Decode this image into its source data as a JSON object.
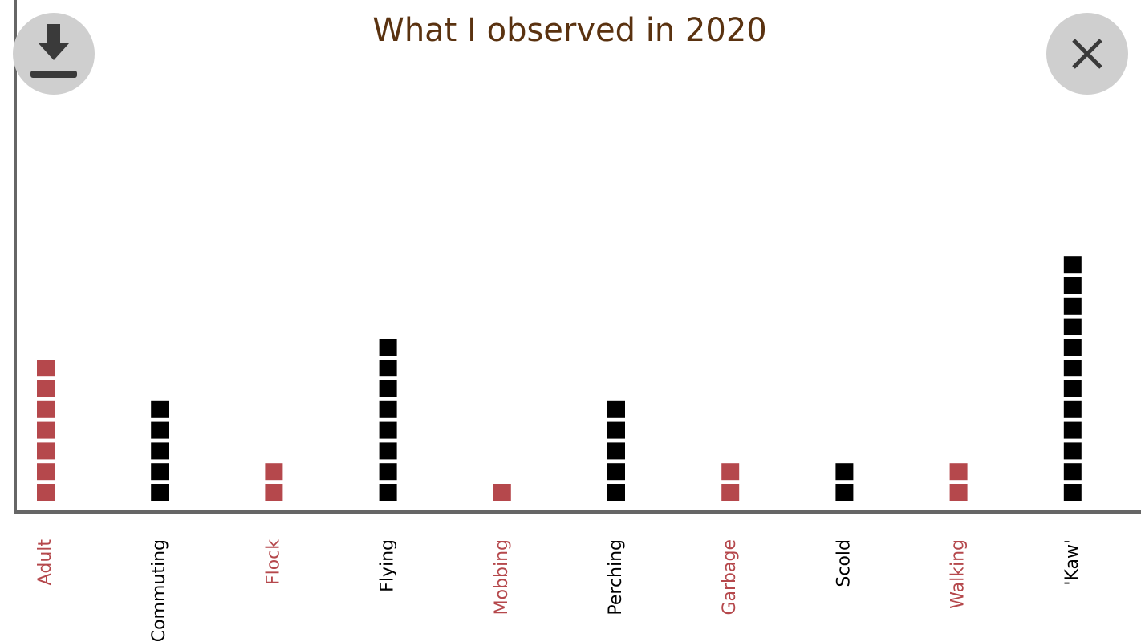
{
  "chart_data": {
    "type": "unit",
    "title": "What I observed in 2020",
    "categories": [
      "Adult",
      "Commuting",
      "Flock",
      "Flying",
      "Mobbing",
      "Perching",
      "Garbage",
      "Scold",
      "Walking",
      "'Kaw'"
    ],
    "values": [
      7,
      5,
      2,
      8,
      1,
      5,
      2,
      2,
      2,
      12
    ],
    "colors": [
      "#b5484c",
      "#000000",
      "#b5484c",
      "#000000",
      "#b5484c",
      "#000000",
      "#b5484c",
      "#000000",
      "#b5484c",
      "#000000"
    ]
  }
}
